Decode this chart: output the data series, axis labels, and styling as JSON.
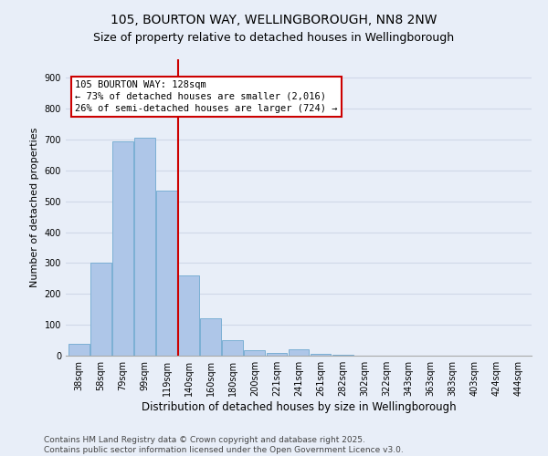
{
  "title": "105, BOURTON WAY, WELLINGBOROUGH, NN8 2NW",
  "subtitle": "Size of property relative to detached houses in Wellingborough",
  "xlabel": "Distribution of detached houses by size in Wellingborough",
  "ylabel": "Number of detached properties",
  "categories": [
    "38sqm",
    "58sqm",
    "79sqm",
    "99sqm",
    "119sqm",
    "140sqm",
    "160sqm",
    "180sqm",
    "200sqm",
    "221sqm",
    "241sqm",
    "261sqm",
    "282sqm",
    "302sqm",
    "322sqm",
    "343sqm",
    "363sqm",
    "383sqm",
    "403sqm",
    "424sqm",
    "444sqm"
  ],
  "values": [
    38,
    300,
    695,
    705,
    535,
    260,
    120,
    50,
    18,
    8,
    22,
    5,
    2,
    1,
    1,
    0,
    0,
    0,
    0,
    0,
    0
  ],
  "bar_color": "#aec6e8",
  "bar_edgecolor": "#7bafd4",
  "annotation_line_label": "105 BOURTON WAY: 128sqm",
  "annotation_text1": "← 73% of detached houses are smaller (2,016)",
  "annotation_text2": "26% of semi-detached houses are larger (724) →",
  "annotation_box_color": "#ffffff",
  "annotation_box_edgecolor": "#cc0000",
  "vline_color": "#cc0000",
  "vline_x": 4.5,
  "ylim": [
    0,
    960
  ],
  "yticks": [
    0,
    100,
    200,
    300,
    400,
    500,
    600,
    700,
    800,
    900
  ],
  "grid_color": "#d0d8e8",
  "background_color": "#e8eef8",
  "footer_line1": "Contains HM Land Registry data © Crown copyright and database right 2025.",
  "footer_line2": "Contains public sector information licensed under the Open Government Licence v3.0.",
  "title_fontsize": 10,
  "subtitle_fontsize": 9,
  "xlabel_fontsize": 8.5,
  "ylabel_fontsize": 8,
  "tick_fontsize": 7,
  "footer_fontsize": 6.5,
  "ann_fontsize": 7.5
}
